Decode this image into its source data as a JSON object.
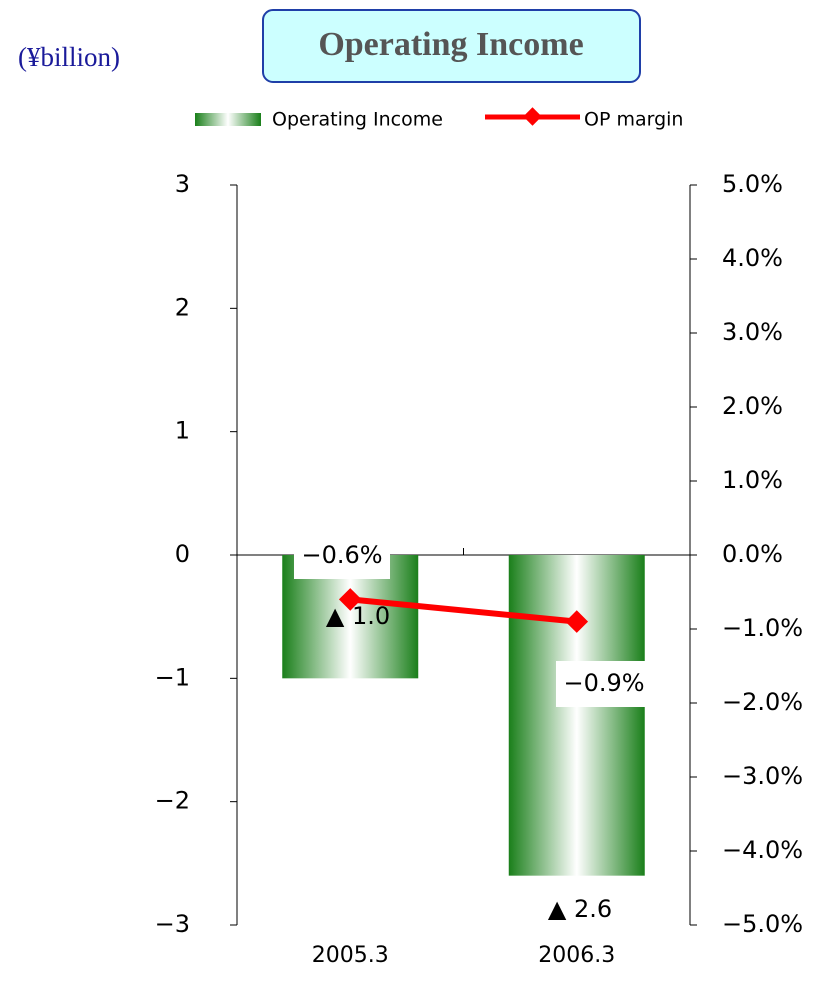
{
  "chart_data": {
    "type": "bar_line",
    "title": "Operating Income",
    "unit_label": "(¥billion)",
    "categories": [
      "2005.3",
      "2006.3"
    ],
    "series": [
      {
        "name": "Operating Income",
        "type": "bar",
        "color": "#1a7f1a",
        "values": [
          -1.0,
          -2.6
        ],
        "value_labels": [
          "▲ 1.0",
          "▲ 2.6"
        ]
      },
      {
        "name": "OP margin",
        "type": "line",
        "axis": "y2",
        "color": "#ff0000",
        "values": [
          -0.6,
          -0.9
        ],
        "value_labels": [
          "−0.6%",
          "−0.9%"
        ]
      }
    ],
    "ylim": [
      -3,
      3
    ],
    "yticks": [
      {
        "value": -3,
        "label": "−3"
      },
      {
        "value": -2,
        "label": "−2"
      },
      {
        "value": -1,
        "label": "−1"
      },
      0,
      1,
      2,
      3
    ],
    "y2lim": [
      -5,
      5
    ],
    "y2ticks": [
      {
        "value": -5,
        "label": "−5.0%"
      },
      {
        "value": -4,
        "label": "−4.0%"
      },
      {
        "value": -3,
        "label": "−3.0%"
      },
      {
        "value": -2,
        "label": "−2.0%"
      },
      {
        "value": -1,
        "label": "−1.0%"
      },
      {
        "value": 0,
        "label": "0.0%"
      },
      {
        "value": 1,
        "label": "1.0%"
      },
      {
        "value": 2,
        "label": "2.0%"
      },
      {
        "value": 3,
        "label": "3.0%"
      },
      {
        "value": 4,
        "label": "4.0%"
      },
      {
        "value": 5,
        "label": "5.0%"
      }
    ],
    "legend": "top"
  }
}
